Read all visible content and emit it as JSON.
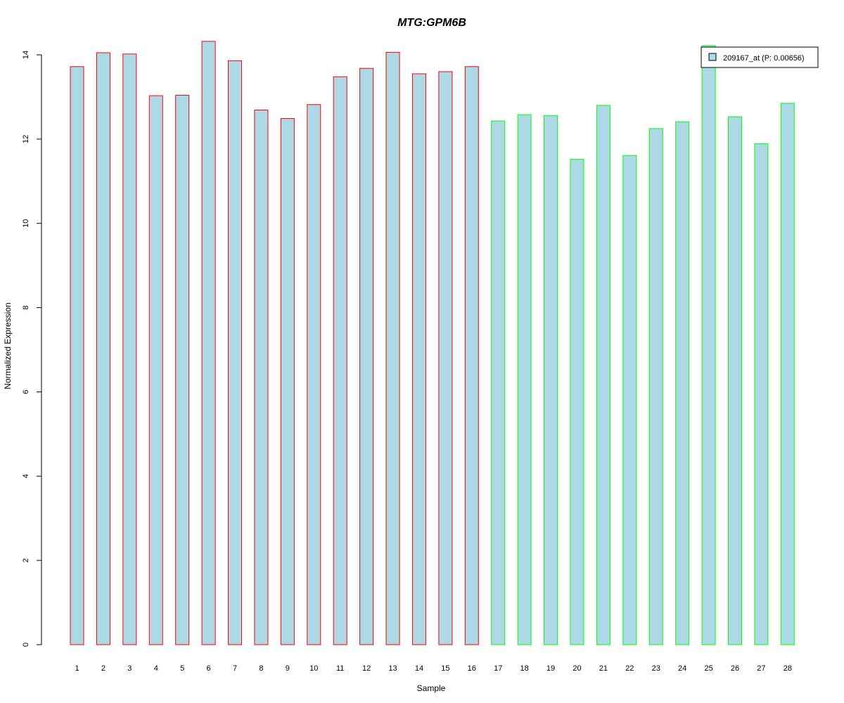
{
  "chart_data": {
    "type": "bar",
    "title": "MTG:GPM6B",
    "xlabel": "Sample",
    "ylabel": "Normalized Expression",
    "ylim": [
      0,
      14
    ],
    "yticks": [
      0,
      2,
      4,
      6,
      8,
      10,
      12,
      14
    ],
    "grid": false,
    "legend_position": "top-right",
    "categories": [
      "1",
      "2",
      "3",
      "4",
      "5",
      "6",
      "7",
      "8",
      "9",
      "10",
      "11",
      "12",
      "13",
      "14",
      "15",
      "16",
      "17",
      "18",
      "19",
      "20",
      "21",
      "22",
      "23",
      "24",
      "25",
      "26",
      "27",
      "28"
    ],
    "series": [
      {
        "name": "209167_at (P: 0.00656)",
        "values": [
          13.72,
          14.05,
          14.02,
          13.03,
          13.04,
          14.32,
          13.86,
          12.69,
          12.49,
          12.82,
          13.48,
          13.68,
          14.06,
          13.55,
          13.6,
          13.72,
          12.43,
          12.58,
          12.56,
          11.52,
          12.8,
          11.61,
          12.25,
          12.41,
          14.22,
          12.53,
          11.89,
          12.85
        ],
        "fill": "#add8e6"
      }
    ],
    "bar_borders": [
      "#ff0000",
      "#ff0000",
      "#ff0000",
      "#ff0000",
      "#ff0000",
      "#ff0000",
      "#ff0000",
      "#ff0000",
      "#ff0000",
      "#ff0000",
      "#ff0000",
      "#ff0000",
      "#ff0000",
      "#ff0000",
      "#ff0000",
      "#ff0000",
      "#00ff00",
      "#00ff00",
      "#00ff00",
      "#00ff00",
      "#00ff00",
      "#00ff00",
      "#00ff00",
      "#00ff00",
      "#00ff00",
      "#00ff00",
      "#00ff00",
      "#00ff00"
    ],
    "title_color": "#0000cd"
  }
}
